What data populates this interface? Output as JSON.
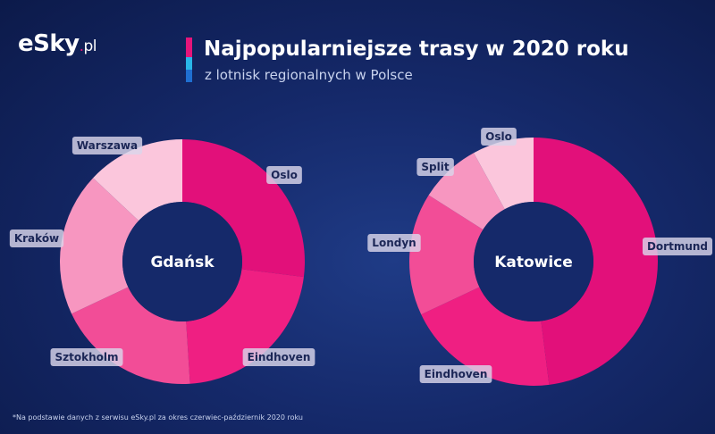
{
  "logo": {
    "main": "eSky",
    "dot": ".",
    "suffix": "pl"
  },
  "header": {
    "title": "Najpopularniejsze trasy w 2020 roku",
    "subtitle": "z lotnisk regionalnych w Polsce"
  },
  "footnote": "*Na podstawie danych z serwisu eSky.pl za okres czerwiec-październik 2020 roku",
  "colors": {
    "brand_pink": "#e5157a",
    "accent_blue": "#29b6e8",
    "accent_dark_blue": "#1f6fd1"
  },
  "chart_data": [
    {
      "type": "pie",
      "style": "donut",
      "center_label": "Gdańsk",
      "categories": [
        "Oslo",
        "Eindhoven",
        "Sztokholm",
        "Kraków",
        "Warszawa"
      ],
      "values": [
        27,
        22,
        19,
        19,
        13
      ],
      "colors": [
        "#e2107a",
        "#ef1f82",
        "#f24d97",
        "#f796c0",
        "#fbc6dc"
      ]
    },
    {
      "type": "pie",
      "style": "donut",
      "center_label": "Katowice",
      "categories": [
        "Dortmund",
        "Eindhoven",
        "Londyn",
        "Split",
        "Oslo"
      ],
      "values": [
        48,
        20,
        16,
        8,
        8
      ],
      "colors": [
        "#e2107a",
        "#ef1f82",
        "#f24d97",
        "#f796c0",
        "#fbc6dc"
      ]
    }
  ]
}
